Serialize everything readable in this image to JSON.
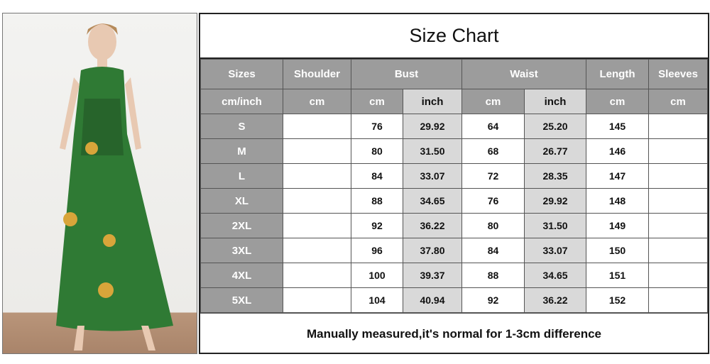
{
  "title": "Size Chart",
  "header": [
    "Sizes",
    "Shoulder",
    "Bust",
    "Waist",
    "Length",
    "Sleeves"
  ],
  "units": [
    "cm/inch",
    "cm",
    "cm",
    "inch",
    "cm",
    "inch",
    "cm",
    "cm"
  ],
  "rows": [
    [
      "S",
      "",
      "76",
      "29.92",
      "64",
      "25.20",
      "145",
      ""
    ],
    [
      "M",
      "",
      "80",
      "31.50",
      "68",
      "26.77",
      "146",
      ""
    ],
    [
      "L",
      "",
      "84",
      "33.07",
      "72",
      "28.35",
      "147",
      ""
    ],
    [
      "XL",
      "",
      "88",
      "34.65",
      "76",
      "29.92",
      "148",
      ""
    ],
    [
      "2XL",
      "",
      "92",
      "36.22",
      "80",
      "31.50",
      "149",
      ""
    ],
    [
      "3XL",
      "",
      "96",
      "37.80",
      "84",
      "33.07",
      "150",
      ""
    ],
    [
      "4XL",
      "",
      "100",
      "39.37",
      "88",
      "34.65",
      "151",
      ""
    ],
    [
      "5XL",
      "",
      "104",
      "40.94",
      "92",
      "36.22",
      "152",
      ""
    ]
  ],
  "note": "Manually measured,it's normal for 1-3cm difference",
  "colors": {
    "header_bg": "#9c9c9c",
    "inch_bg": "#d9d9d9",
    "dress_green": "#2f7a34"
  }
}
